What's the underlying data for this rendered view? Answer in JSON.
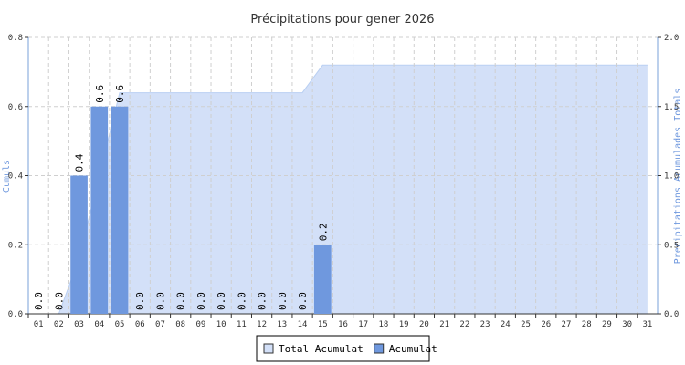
{
  "chart_data": {
    "type": "bar",
    "title": "Précipitations pour gener 2026",
    "ylabel": "Cumuls",
    "y2label": "Precipitations Acumulades Totals",
    "categories": [
      "01",
      "02",
      "03",
      "04",
      "05",
      "06",
      "07",
      "08",
      "09",
      "10",
      "11",
      "12",
      "13",
      "14",
      "15",
      "16",
      "17",
      "18",
      "19",
      "20",
      "21",
      "22",
      "23",
      "24",
      "25",
      "26",
      "27",
      "28",
      "29",
      "30",
      "31"
    ],
    "ylim": [
      0,
      0.8
    ],
    "yticks": [
      {
        "value": 0,
        "label": "0.0"
      },
      0.2,
      0.4,
      0.6,
      0.8
    ],
    "y2lim": [
      0,
      2
    ],
    "y2ticks": [
      {
        "value": 0,
        "label": "0.0"
      },
      0.5,
      {
        "value": 1,
        "label": "1.0"
      },
      1.5,
      {
        "value": 2,
        "label": "2.0"
      }
    ],
    "grid": true,
    "legend": "bottom",
    "series": [
      {
        "name": "Total Acumulat",
        "type": "area",
        "axis": "y2",
        "color": "#d3e0f8",
        "line_color": "#b9cff2",
        "values": [
          0,
          0,
          0.4,
          1.0,
          1.6,
          1.6,
          1.6,
          1.6,
          1.6,
          1.6,
          1.6,
          1.6,
          1.6,
          1.6,
          1.8,
          1.8,
          1.8,
          1.8,
          1.8,
          1.8,
          1.8,
          1.8,
          1.8,
          1.8,
          1.8,
          1.8,
          1.8,
          1.8,
          1.8,
          1.8,
          1.8
        ]
      },
      {
        "name": "Acumulat",
        "type": "bar",
        "color": "#6f98de",
        "values": [
          0,
          0,
          0.4,
          0.6,
          0.6,
          0,
          0,
          0,
          0,
          0,
          0,
          0,
          0,
          0,
          0.2,
          null,
          null,
          null,
          null,
          null,
          null,
          null,
          null,
          null,
          null,
          null,
          null,
          null,
          null,
          null,
          null
        ],
        "value_labels": [
          "0.0",
          "0.0",
          "0.4",
          "0.6",
          "0.6",
          "0.0",
          "0.0",
          "0.0",
          "0.0",
          "0.0",
          "0.0",
          "0.0",
          "0.0",
          "0.0",
          "0.2",
          null,
          null,
          null,
          null,
          null,
          null,
          null,
          null,
          null,
          null,
          null,
          null,
          null,
          null,
          null,
          null
        ]
      }
    ]
  }
}
